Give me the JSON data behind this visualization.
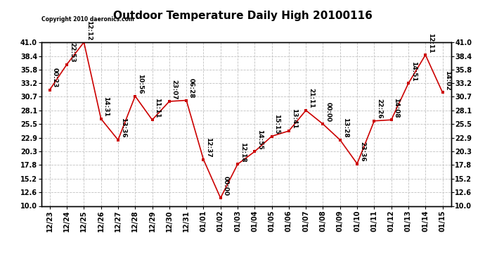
{
  "title": "Outdoor Temperature Daily High 20100116",
  "copyright": "Copyright 2010 daeronics.com",
  "x_labels": [
    "12/23",
    "12/24",
    "12/25",
    "12/26",
    "12/27",
    "12/28",
    "12/29",
    "12/30",
    "12/31",
    "01/01",
    "01/02",
    "01/03",
    "01/04",
    "01/05",
    "01/06",
    "01/07",
    "01/08",
    "01/09",
    "01/10",
    "01/11",
    "01/12",
    "01/13",
    "01/14",
    "01/15"
  ],
  "y_values": [
    32.0,
    36.8,
    41.0,
    26.5,
    22.5,
    30.8,
    26.3,
    29.8,
    30.0,
    18.8,
    11.5,
    17.9,
    20.3,
    23.2,
    24.2,
    28.1,
    25.5,
    22.5,
    18.0,
    26.1,
    26.3,
    33.2,
    38.6,
    31.5
  ],
  "annotations": [
    "00:23",
    "22:53",
    "12:12",
    "14:31",
    "13:36",
    "10:56",
    "11:11",
    "23:07",
    "06:28",
    "12:37",
    "00:00",
    "12:18",
    "14:55",
    "15:15",
    "13:41",
    "21:11",
    "00:00",
    "13:28",
    "23:36",
    "22:26",
    "14:08",
    "14:51",
    "12:11",
    "14:02"
  ],
  "ylim": [
    10.0,
    41.0
  ],
  "yticks": [
    10.0,
    12.6,
    15.2,
    17.8,
    20.3,
    22.9,
    25.5,
    28.1,
    30.7,
    33.2,
    35.8,
    38.4,
    41.0
  ],
  "line_color": "#cc0000",
  "marker_color": "#cc0000",
  "background_color": "#ffffff",
  "grid_color": "#c0c0c0",
  "title_fontsize": 11,
  "tick_fontsize": 7,
  "annotation_fontsize": 6.5
}
